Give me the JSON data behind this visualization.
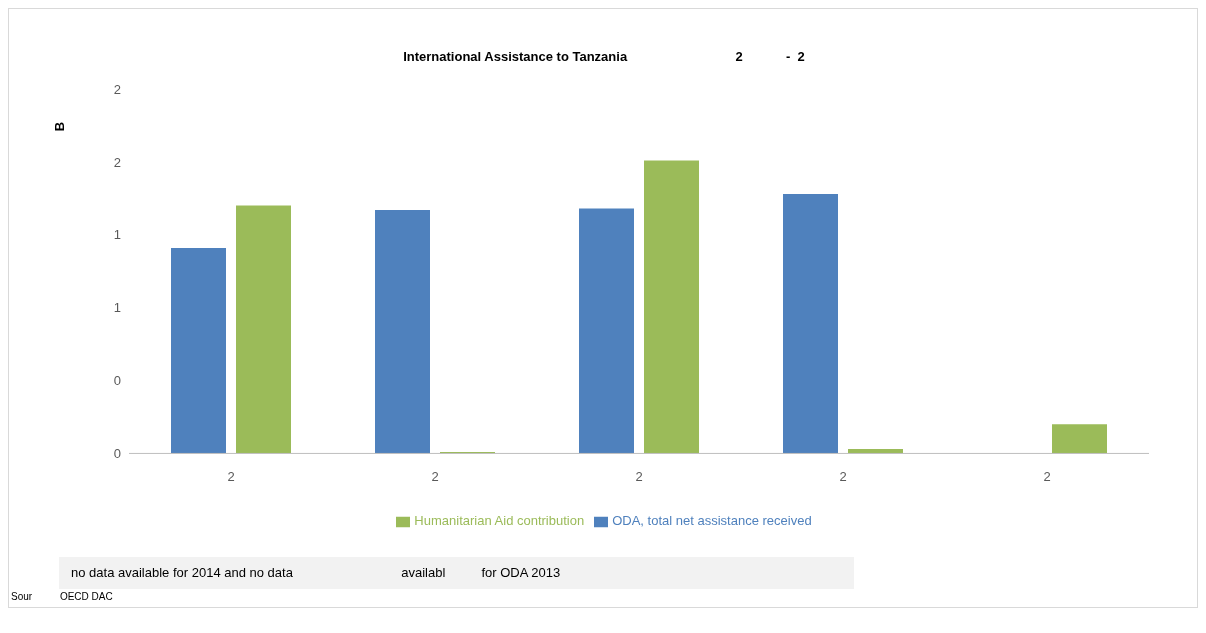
{
  "chart_data": {
    "type": "bar",
    "title": "International Assistance to Tanzania                              2            -  2",
    "ylabel": "B",
    "categories": [
      "2",
      "2",
      "2",
      "2",
      "2"
    ],
    "series": [
      {
        "name": "ODA, total net assistance received",
        "color": "#4f81bd",
        "values": [
          1.41,
          1.67,
          1.68,
          1.78,
          null
        ]
      },
      {
        "name": "Humanitarian Aid contribution",
        "color": "#9bbb59",
        "values": [
          1.7,
          0.01,
          2.01,
          0.03,
          0.2
        ]
      }
    ],
    "ylim": [
      0,
      2.5
    ],
    "yticks": [
      {
        "value": 0,
        "label": "0"
      },
      {
        "value": 0.5,
        "label": "0"
      },
      {
        "value": 1,
        "label": "1"
      },
      {
        "value": 1.5,
        "label": "1"
      },
      {
        "value": 2,
        "label": "2"
      },
      {
        "value": 2.5,
        "label": "2"
      }
    ],
    "grid": false,
    "legend": "bottom",
    "annotations": [
      "no data available for 2014 and no data                              availabl          for ODA 2013",
      "Sour          OECD DAC"
    ]
  }
}
